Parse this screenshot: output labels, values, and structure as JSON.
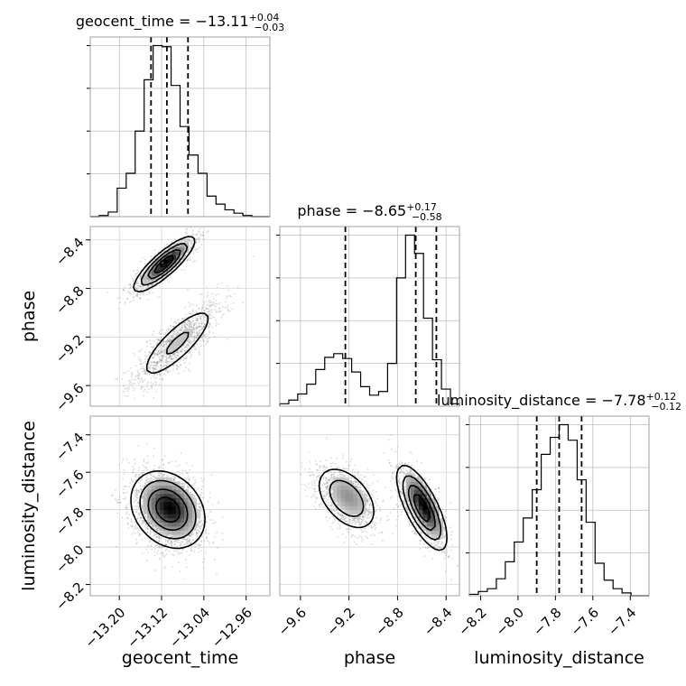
{
  "chart_data": {
    "type": "corner",
    "parameters": [
      "geocent_time",
      "phase",
      "luminosity_distance"
    ],
    "axis_labels": {
      "geocent_time": "geocent_time",
      "phase": "phase",
      "luminosity_distance": "luminosity_distance"
    },
    "titles": [
      {
        "name": "geocent_time",
        "prefix": "geocent_time = ",
        "value": "−13.11",
        "upper": "+0.04",
        "lower": "−0.03"
      },
      {
        "name": "phase",
        "prefix": "phase = ",
        "value": "−8.65",
        "upper": "+0.17",
        "lower": "−0.58"
      },
      {
        "name": "luminosity_distance",
        "prefix": "luminosity_distance = ",
        "value": "−7.78",
        "upper": "+0.12",
        "lower": "−0.12"
      }
    ],
    "ranges": {
      "geocent_time": [
        -13.255,
        -12.915
      ],
      "phase": [
        -9.77,
        -8.29
      ],
      "luminosity_distance": [
        -8.26,
        -7.3
      ]
    },
    "ticks": {
      "geocent_time": [
        -13.2,
        -13.12,
        -13.04,
        -12.96
      ],
      "phase": [
        -9.6,
        -9.2,
        -8.8,
        -8.4
      ],
      "luminosity_distance": [
        -8.2,
        -8.0,
        -7.8,
        -7.6,
        -7.4
      ]
    },
    "tick_labels": {
      "geocent_time": [
        "−13.20",
        "−13.12",
        "−13.04",
        "−12.96"
      ],
      "phase": [
        "−9.6",
        "−9.2",
        "−8.8",
        "−8.4"
      ],
      "luminosity_distance": [
        "−8.2",
        "−8.0",
        "−7.8",
        "−7.6",
        "−7.4"
      ]
    },
    "quantiles": {
      "geocent_time": [
        -13.14,
        -13.11,
        -13.07
      ],
      "phase": [
        -9.23,
        -8.65,
        -8.48
      ],
      "luminosity_distance": [
        -7.9,
        -7.78,
        -7.66
      ]
    },
    "histograms": {
      "geocent_time": {
        "edges": [
          -13.255,
          -13.238,
          -13.221,
          -13.204,
          -13.187,
          -13.17,
          -13.153,
          -13.136,
          -13.119,
          -13.102,
          -13.085,
          -13.068,
          -13.051,
          -13.034,
          -13.017,
          -13.0,
          -12.983,
          -12.966,
          -12.949,
          -12.932,
          -12.915
        ],
        "counts": [
          0,
          1,
          4,
          25,
          38,
          75,
          120,
          150,
          149,
          115,
          79,
          54,
          38,
          18,
          11,
          6,
          3,
          1,
          0,
          0
        ]
      },
      "phase": {
        "edges": [
          -9.77,
          -9.696,
          -9.622,
          -9.548,
          -9.474,
          -9.4,
          -9.326,
          -9.252,
          -9.178,
          -9.104,
          -9.03,
          -8.956,
          -8.882,
          -8.808,
          -8.734,
          -8.66,
          -8.586,
          -8.512,
          -8.438,
          -8.364,
          -8.29
        ],
        "counts": [
          2,
          5,
          10,
          18,
          30,
          40,
          43,
          39,
          28,
          16,
          9,
          12,
          35,
          105,
          140,
          125,
          72,
          38,
          14,
          2
        ]
      },
      "luminosity_distance": {
        "edges": [
          -8.26,
          -8.212,
          -8.164,
          -8.116,
          -8.068,
          -8.02,
          -7.972,
          -7.924,
          -7.876,
          -7.828,
          -7.78,
          -7.732,
          -7.684,
          -7.636,
          -7.588,
          -7.54,
          -7.492,
          -7.444,
          -7.396,
          -7.348,
          -7.3
        ],
        "counts": [
          1,
          3,
          5,
          12,
          24,
          38,
          55,
          75,
          100,
          112,
          121,
          110,
          82,
          52,
          23,
          11,
          5,
          2,
          0,
          0
        ]
      }
    },
    "density_2d": [
      {
        "x": "geocent_time",
        "y": "phase",
        "modes": [
          {
            "x": -13.115,
            "y": -8.6,
            "sx": 0.028,
            "sy": 0.11,
            "rho": 0.85,
            "weight": 0.55
          },
          {
            "x": -13.09,
            "y": -9.25,
            "sx": 0.04,
            "sy": 0.17,
            "rho": 0.82,
            "weight": 0.45
          }
        ]
      },
      {
        "x": "geocent_time",
        "y": "luminosity_distance",
        "modes": [
          {
            "x": -13.108,
            "y": -7.8,
            "sx": 0.034,
            "sy": 0.1,
            "rho": -0.25,
            "weight": 1.0
          }
        ]
      },
      {
        "x": "phase",
        "y": "luminosity_distance",
        "modes": [
          {
            "x": -9.22,
            "y": -7.74,
            "sx": 0.13,
            "sy": 0.09,
            "rho": -0.45,
            "weight": 0.42
          },
          {
            "x": -8.6,
            "y": -7.79,
            "sx": 0.1,
            "sy": 0.11,
            "rho": -0.72,
            "weight": 0.58
          }
        ]
      }
    ],
    "grid": true
  }
}
